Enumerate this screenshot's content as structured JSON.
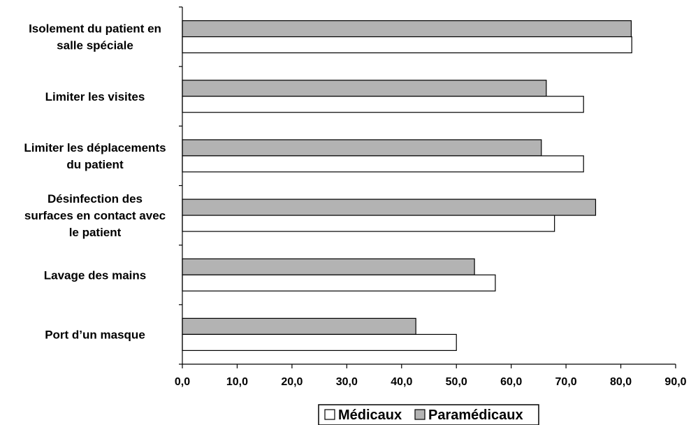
{
  "chart_data": {
    "type": "bar",
    "orientation": "horizontal",
    "categories": [
      "Isolement du patient en salle spéciale",
      "Limiter les visites",
      "Limiter les déplacements du patient",
      "Désinfection des surfaces en contact avec le patient",
      "Lavage des mains",
      "Port d’un masque"
    ],
    "category_lines": [
      [
        "Isolement du patient en",
        "salle spéciale"
      ],
      [
        "Limiter les visites"
      ],
      [
        "Limiter les déplacements",
        "du patient"
      ],
      [
        "Désinfection des",
        "surfaces en contact avec",
        "le patient"
      ],
      [
        "Lavage des mains"
      ],
      [
        "Port d’un masque"
      ]
    ],
    "series": [
      {
        "name": "Médicaux",
        "color": "#ffffff",
        "values": [
          82.0,
          73.2,
          73.2,
          67.9,
          57.1,
          50.0
        ]
      },
      {
        "name": "Paramédicaux",
        "color": "#b3b3b3",
        "values": [
          81.9,
          66.4,
          65.5,
          75.4,
          53.3,
          42.6
        ]
      }
    ],
    "xlim": [
      0,
      90
    ],
    "xticks": [
      "0,0",
      "10,0",
      "20,0",
      "30,0",
      "40,0",
      "50,0",
      "60,0",
      "70,0",
      "80,0",
      "90,0"
    ],
    "grid": false,
    "legend_position": "bottom"
  }
}
